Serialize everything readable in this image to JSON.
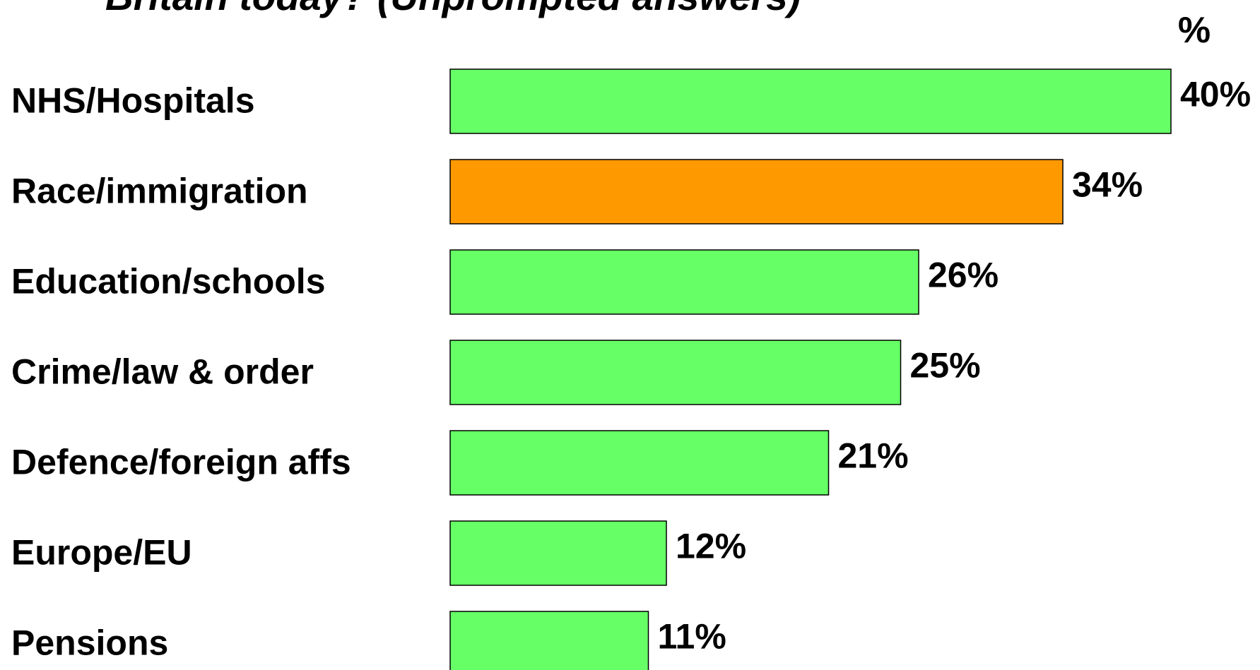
{
  "chart_data": {
    "type": "hbar",
    "title": "Britain today? (Unprompted answers)",
    "unit_label": "%",
    "categories": [
      "NHS/Hospitals",
      "Race/immigration",
      "Education/schools",
      "Crime/law & order",
      "Defence/foreign affs",
      "Europe/EU",
      "Pensions"
    ],
    "values": [
      40,
      34,
      26,
      25,
      21,
      12,
      11
    ],
    "value_labels": [
      "40%",
      "34%",
      "26%",
      "25%",
      "21%",
      "12%",
      "11%"
    ],
    "colors": [
      "#66ff66",
      "#ff9900",
      "#66ff66",
      "#66ff66",
      "#66ff66",
      "#66ff66",
      "#66ff66"
    ],
    "xlim": [
      0,
      40
    ]
  }
}
